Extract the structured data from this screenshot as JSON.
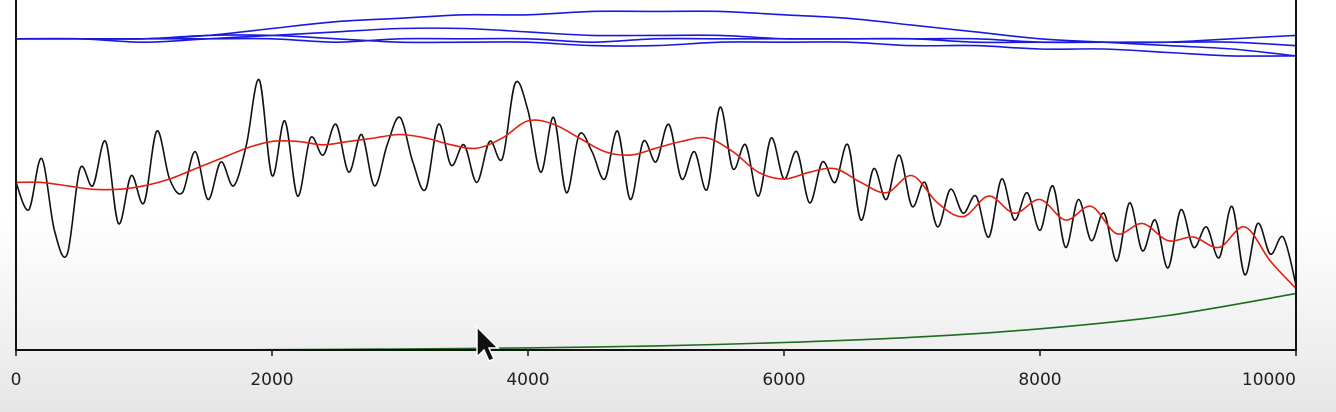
{
  "chart_data": {
    "type": "line",
    "title": "",
    "xlabel": "",
    "ylabel": "",
    "xlim": [
      0,
      10000
    ],
    "ylim": [
      0,
      1
    ],
    "grid": false,
    "x_ticks": [
      "0",
      "2000",
      "4000",
      "6000",
      "8000",
      "10000"
    ],
    "x_tick_values": [
      0,
      2000,
      4000,
      6000,
      8000,
      10000
    ],
    "series": [
      {
        "color": "#1a1adf",
        "x": [
          0,
          500,
          1000,
          1500,
          2000,
          2500,
          3000,
          3500,
          4000,
          4500,
          5000,
          5500,
          6000,
          6500,
          7000,
          7500,
          8000,
          8500,
          9000,
          9500,
          10000
        ],
        "values": [
          0.91,
          0.91,
          0.91,
          0.92,
          0.94,
          0.96,
          0.97,
          0.98,
          0.98,
          0.99,
          0.99,
          0.99,
          0.98,
          0.97,
          0.95,
          0.93,
          0.91,
          0.9,
          0.89,
          0.88,
          0.86
        ]
      },
      {
        "color": "#1a1adf",
        "x": [
          0,
          500,
          1000,
          1500,
          2000,
          2500,
          3000,
          3500,
          4000,
          4500,
          5000,
          5500,
          6000,
          6500,
          7000,
          7500,
          8000,
          8500,
          9000,
          9500,
          10000
        ],
        "values": [
          0.91,
          0.91,
          0.9,
          0.91,
          0.92,
          0.93,
          0.94,
          0.94,
          0.93,
          0.92,
          0.92,
          0.92,
          0.91,
          0.91,
          0.91,
          0.91,
          0.9,
          0.9,
          0.9,
          0.9,
          0.89
        ]
      },
      {
        "color": "#1a1adf",
        "x": [
          0,
          500,
          1000,
          1500,
          2000,
          2500,
          3000,
          3500,
          4000,
          4500,
          5000,
          5500,
          6000,
          6500,
          7000,
          7500,
          8000,
          8500,
          9000,
          9500,
          10000
        ],
        "values": [
          0.91,
          0.91,
          0.91,
          0.91,
          0.91,
          0.9,
          0.91,
          0.91,
          0.91,
          0.9,
          0.91,
          0.91,
          0.91,
          0.91,
          0.91,
          0.9,
          0.9,
          0.9,
          0.9,
          0.91,
          0.92
        ]
      },
      {
        "color": "#1a1adf",
        "x": [
          0,
          500,
          1000,
          1500,
          2000,
          2500,
          3000,
          3500,
          4000,
          4500,
          5000,
          5500,
          6000,
          6500,
          7000,
          7500,
          8000,
          8500,
          9000,
          9500,
          10000
        ],
        "values": [
          0.91,
          0.91,
          0.91,
          0.92,
          0.92,
          0.91,
          0.9,
          0.9,
          0.9,
          0.89,
          0.89,
          0.9,
          0.9,
          0.9,
          0.89,
          0.89,
          0.88,
          0.88,
          0.87,
          0.86,
          0.86
        ]
      },
      {
        "color": "#111111",
        "x": [
          0,
          100,
          200,
          300,
          400,
          500,
          600,
          700,
          800,
          900,
          1000,
          1100,
          1200,
          1300,
          1400,
          1500,
          1600,
          1700,
          1800,
          1900,
          2000,
          2100,
          2200,
          2300,
          2400,
          2500,
          2600,
          2700,
          2800,
          2900,
          3000,
          3100,
          3200,
          3300,
          3400,
          3500,
          3600,
          3700,
          3800,
          3900,
          4000,
          4100,
          4200,
          4300,
          4400,
          4500,
          4600,
          4700,
          4800,
          4900,
          5000,
          5100,
          5200,
          5300,
          5400,
          5500,
          5600,
          5700,
          5800,
          5900,
          6000,
          6100,
          6200,
          6300,
          6400,
          6500,
          6600,
          6700,
          6800,
          6900,
          7000,
          7100,
          7200,
          7300,
          7400,
          7500,
          7600,
          7700,
          7800,
          7900,
          8000,
          8100,
          8200,
          8300,
          8400,
          8500,
          8600,
          8700,
          8800,
          8900,
          9000,
          9100,
          9200,
          9300,
          9400,
          9500,
          9600,
          9700,
          9800,
          9900,
          10000
        ],
        "values": [
          0.49,
          0.41,
          0.56,
          0.35,
          0.28,
          0.53,
          0.48,
          0.61,
          0.37,
          0.51,
          0.43,
          0.64,
          0.5,
          0.46,
          0.58,
          0.44,
          0.55,
          0.48,
          0.6,
          0.79,
          0.51,
          0.67,
          0.45,
          0.62,
          0.57,
          0.66,
          0.52,
          0.63,
          0.48,
          0.6,
          0.68,
          0.55,
          0.47,
          0.66,
          0.54,
          0.6,
          0.49,
          0.61,
          0.56,
          0.78,
          0.7,
          0.52,
          0.68,
          0.46,
          0.63,
          0.58,
          0.5,
          0.64,
          0.44,
          0.61,
          0.55,
          0.66,
          0.5,
          0.58,
          0.47,
          0.71,
          0.53,
          0.6,
          0.45,
          0.62,
          0.5,
          0.58,
          0.43,
          0.55,
          0.49,
          0.6,
          0.38,
          0.53,
          0.44,
          0.57,
          0.42,
          0.49,
          0.36,
          0.47,
          0.4,
          0.45,
          0.33,
          0.5,
          0.38,
          0.46,
          0.35,
          0.48,
          0.3,
          0.44,
          0.32,
          0.4,
          0.26,
          0.43,
          0.29,
          0.38,
          0.24,
          0.41,
          0.3,
          0.36,
          0.27,
          0.42,
          0.22,
          0.37,
          0.28,
          0.33,
          0.19
        ]
      },
      {
        "color": "#e02010",
        "x": [
          0,
          200,
          400,
          600,
          800,
          1000,
          1200,
          1400,
          1600,
          1800,
          2000,
          2200,
          2400,
          2600,
          2800,
          3000,
          3200,
          3400,
          3600,
          3800,
          4000,
          4200,
          4400,
          4600,
          4800,
          5000,
          5200,
          5400,
          5600,
          5800,
          6000,
          6200,
          6400,
          6600,
          6800,
          7000,
          7200,
          7400,
          7600,
          7800,
          8000,
          8200,
          8400,
          8600,
          8800,
          9000,
          9200,
          9400,
          9600,
          9800,
          10000
        ],
        "values": [
          0.49,
          0.49,
          0.48,
          0.47,
          0.47,
          0.48,
          0.5,
          0.53,
          0.56,
          0.59,
          0.61,
          0.61,
          0.6,
          0.61,
          0.62,
          0.63,
          0.62,
          0.6,
          0.59,
          0.62,
          0.67,
          0.66,
          0.62,
          0.58,
          0.57,
          0.59,
          0.61,
          0.62,
          0.58,
          0.52,
          0.5,
          0.52,
          0.53,
          0.49,
          0.46,
          0.51,
          0.43,
          0.39,
          0.45,
          0.4,
          0.44,
          0.38,
          0.42,
          0.34,
          0.37,
          0.32,
          0.33,
          0.3,
          0.36,
          0.26,
          0.18
        ]
      },
      {
        "color": "#1e6b1e",
        "x": [
          0,
          1000,
          2000,
          3000,
          4000,
          5000,
          6000,
          7000,
          8000,
          9000,
          10000
        ],
        "values": [
          0.0,
          0.0,
          0.001,
          0.003,
          0.006,
          0.012,
          0.022,
          0.037,
          0.062,
          0.101,
          0.165
        ]
      }
    ]
  }
}
